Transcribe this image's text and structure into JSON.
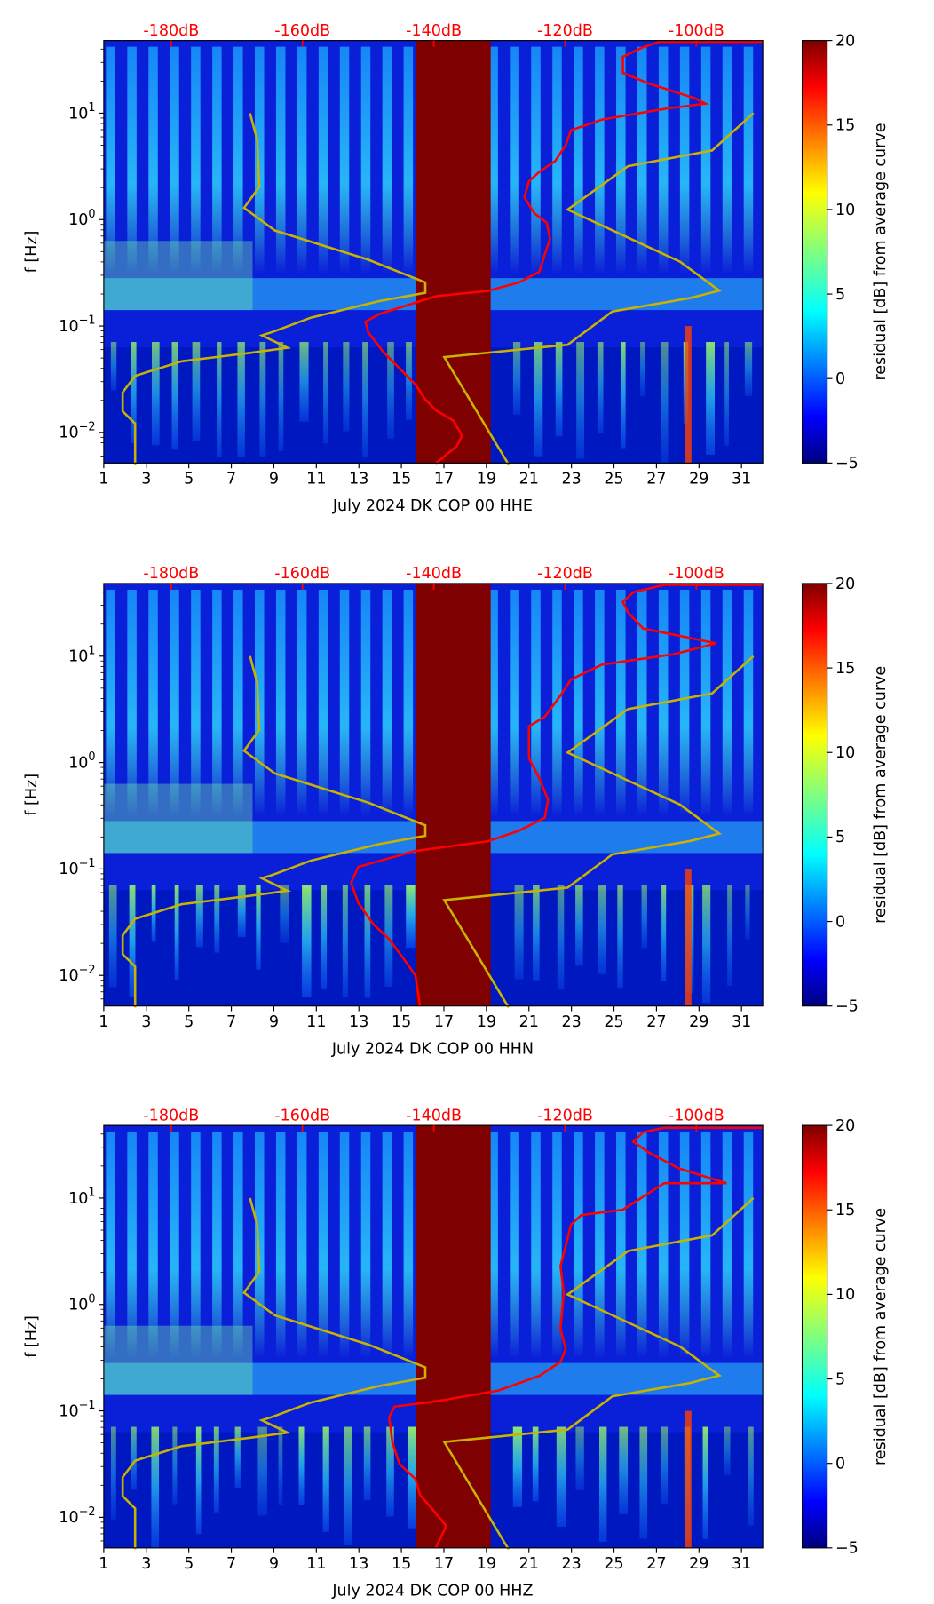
{
  "chart_data": [
    {
      "type": "heatmap",
      "title": "",
      "xlabel": "July 2024 DK COP 00 HHE",
      "ylabel": "f [Hz]",
      "colorbar_label": "residual [dB] from average curve",
      "xlim": [
        1,
        32
      ],
      "ylim_hz": [
        0.005,
        48
      ],
      "yscale": "log",
      "x_ticks": [
        "1",
        "3",
        "5",
        "7",
        "9",
        "11",
        "13",
        "15",
        "17",
        "19",
        "21",
        "23",
        "25",
        "27",
        "29",
        "31"
      ],
      "y_ticks": [
        {
          "exp": "1",
          "value": 10
        },
        {
          "exp": "0",
          "value": 1
        },
        {
          "exp": "−1",
          "value": 0.1
        },
        {
          "exp": "−2",
          "value": 0.01
        }
      ],
      "top_axis_ticks": [
        "-180dB",
        "-160dB",
        "-140dB",
        "-120dB",
        "-100dB"
      ],
      "top_axis_values_db": [
        -180,
        -160,
        -140,
        -120,
        -100
      ],
      "colorbar_ticks": [
        "20",
        "15",
        "10",
        "5",
        "0",
        "−5"
      ],
      "colorbar_range": [
        -5,
        20
      ],
      "data_gap_days": [
        15.7,
        19.2
      ],
      "red_psd_curve": {
        "name": "PSD",
        "db": [
          -139.7,
          -136.5,
          -135.7,
          -137.0,
          -139.7,
          -141.3,
          -142.8,
          -144.4,
          -147.6,
          -150.0,
          -150.4,
          -148.4,
          -139.7,
          -131.8,
          -127.0,
          -123.9,
          -123.1,
          -122.3,
          -122.8,
          -124.7,
          -126.2,
          -125.5,
          -123.9,
          -121.5,
          -119.9,
          -119.1,
          -114.4,
          -104.9,
          -98.6,
          -100.2,
          -107.3,
          -111.2,
          -111.2,
          -108.1,
          -105.7,
          -89.9
        ],
        "log10_f": [
          -2.29,
          -2.13,
          -2.03,
          -1.89,
          -1.79,
          -1.69,
          -1.55,
          -1.45,
          -1.25,
          -1.06,
          -0.96,
          -0.89,
          -0.72,
          -0.67,
          -0.59,
          -0.49,
          -0.33,
          -0.18,
          -0.03,
          0.06,
          0.21,
          0.36,
          0.45,
          0.55,
          0.7,
          0.84,
          0.94,
          1.04,
          1.09,
          1.14,
          1.28,
          1.38,
          1.53,
          1.62,
          1.67,
          1.67
        ]
      }
    },
    {
      "type": "heatmap",
      "title": "",
      "xlabel": "July 2024 DK COP 00 HHN",
      "ylabel": "f [Hz]",
      "colorbar_label": "residual [dB] from average curve",
      "xlim": [
        1,
        32
      ],
      "ylim_hz": [
        0.005,
        48
      ],
      "yscale": "log",
      "x_ticks": [
        "1",
        "3",
        "5",
        "7",
        "9",
        "11",
        "13",
        "15",
        "17",
        "19",
        "21",
        "23",
        "25",
        "27",
        "29",
        "31"
      ],
      "y_ticks": [
        {
          "exp": "1",
          "value": 10
        },
        {
          "exp": "0",
          "value": 1
        },
        {
          "exp": "−1",
          "value": 0.1
        },
        {
          "exp": "−2",
          "value": 0.01
        }
      ],
      "top_axis_ticks": [
        "-180dB",
        "-160dB",
        "-140dB",
        "-120dB",
        "-100dB"
      ],
      "top_axis_values_db": [
        -180,
        -160,
        -140,
        -120,
        -100
      ],
      "colorbar_ticks": [
        "20",
        "15",
        "10",
        "5",
        "0",
        "−5"
      ],
      "colorbar_range": [
        -5,
        20
      ],
      "data_gap_days": [
        15.7,
        19.2
      ],
      "red_psd_curve": {
        "name": "PSD",
        "db": [
          -142.1,
          -142.8,
          -144.4,
          -146.8,
          -149.2,
          -151.5,
          -152.6,
          -151.5,
          -142.8,
          -131.8,
          -127.0,
          -123.1,
          -122.6,
          -123.9,
          -125.5,
          -125.5,
          -123.1,
          -120.7,
          -119.1,
          -114.4,
          -103.3,
          -97.0,
          -103.3,
          -108.1,
          -110.4,
          -111.2,
          -109.6,
          -104.9,
          -89.9
        ],
        "log10_f": [
          -2.29,
          -2.0,
          -1.86,
          -1.66,
          -1.52,
          -1.32,
          -1.13,
          -0.98,
          -0.83,
          -0.74,
          -0.64,
          -0.52,
          -0.35,
          -0.15,
          0.04,
          0.34,
          0.43,
          0.63,
          0.78,
          0.92,
          1.02,
          1.12,
          1.2,
          1.26,
          1.41,
          1.51,
          1.6,
          1.67,
          1.67
        ]
      }
    },
    {
      "type": "heatmap",
      "title": "",
      "xlabel": "July 2024 DK COP 00 HHZ",
      "ylabel": "f [Hz]",
      "colorbar_label": "residual [dB] from average curve",
      "xlim": [
        1,
        32
      ],
      "ylim_hz": [
        0.005,
        48
      ],
      "yscale": "log",
      "x_ticks": [
        "1",
        "3",
        "5",
        "7",
        "9",
        "11",
        "13",
        "15",
        "17",
        "19",
        "21",
        "23",
        "25",
        "27",
        "29",
        "31"
      ],
      "y_ticks": [
        {
          "exp": "1",
          "value": 10
        },
        {
          "exp": "0",
          "value": 1
        },
        {
          "exp": "−1",
          "value": 0.1
        },
        {
          "exp": "−2",
          "value": 0.01
        }
      ],
      "top_axis_ticks": [
        "-180dB",
        "-160dB",
        "-140dB",
        "-120dB",
        "-100dB"
      ],
      "top_axis_values_db": [
        -180,
        -160,
        -140,
        -120,
        -100
      ],
      "colorbar_ticks": [
        "20",
        "15",
        "10",
        "5",
        "0",
        "−5"
      ],
      "colorbar_range": [
        -5,
        20
      ],
      "data_gap_days": [
        15.7,
        19.2
      ],
      "red_psd_curve": {
        "name": "PSD",
        "db": [
          -139.7,
          -138.1,
          -140.0,
          -142.1,
          -142.8,
          -145.2,
          -146.3,
          -146.8,
          -146.0,
          -139.7,
          -130.2,
          -123.9,
          -120.7,
          -119.9,
          -120.7,
          -120.2,
          -120.7,
          -119.9,
          -119.1,
          -117.5,
          -111.2,
          -104.9,
          -95.4,
          -102.7,
          -107.3,
          -109.6,
          -108.1,
          -104.9,
          -89.9
        ],
        "log10_f": [
          -2.29,
          -2.08,
          -1.94,
          -1.79,
          -1.64,
          -1.5,
          -1.3,
          -1.06,
          -0.96,
          -0.91,
          -0.81,
          -0.67,
          -0.54,
          -0.42,
          -0.23,
          0.11,
          0.36,
          0.55,
          0.75,
          0.84,
          0.89,
          1.14,
          1.14,
          1.28,
          1.43,
          1.53,
          1.62,
          1.66,
          1.66
        ]
      }
    }
  ],
  "noise_model_curves": {
    "color": "#c8b400",
    "low": {
      "db": [
        -185.5,
        -185.5,
        -187.4,
        -187.4,
        -185.5,
        -178.4,
        -168.1,
        -162.3,
        -166.2,
        -164.7,
        -158.7,
        -148.4,
        -141.3,
        -141.3,
        -150.0,
        -164.2,
        -168.9,
        -166.6,
        -166.9,
        -168.0
      ],
      "f": [
        0.005,
        0.0121,
        0.0158,
        0.0238,
        0.034,
        0.0466,
        0.0557,
        0.0624,
        0.0817,
        0.0873,
        0.12,
        0.171,
        0.205,
        0.257,
        0.42,
        0.79,
        1.29,
        2.03,
        5.57,
        10
      ]
    },
    "high": {
      "db": [
        -128.6,
        -138.4,
        -119.6,
        -112.8,
        -101.0,
        -96.5,
        -102.5,
        -119.6,
        -110.4,
        -97.6,
        -91.3
      ],
      "f": [
        0.005,
        0.051,
        0.0667,
        0.137,
        0.183,
        0.215,
        0.403,
        1.24,
        3.18,
        4.46,
        10
      ]
    }
  },
  "colors": {
    "psd": "#ff0000",
    "gap": "#7f0000",
    "top_axis": "#ff0000"
  }
}
